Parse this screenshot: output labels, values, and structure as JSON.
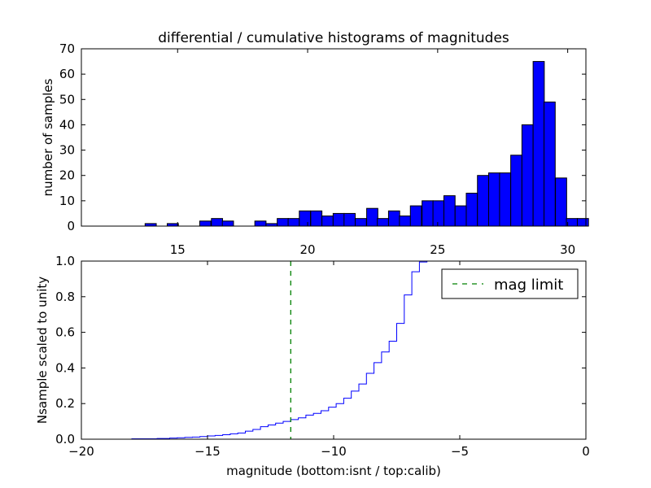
{
  "chart_data": [
    {
      "type": "bar",
      "title": "differential / cumulative histograms of magnitudes",
      "ylabel": "number of samples",
      "xlabel": "",
      "xlim": [
        11.3,
        30.7
      ],
      "ylim": [
        0,
        70
      ],
      "bin_width": 0.43,
      "bar_color": "#0000ff",
      "x_ticks": [
        15,
        20,
        25,
        30
      ],
      "x_tick_labels": [
        "15",
        "20",
        "25",
        "30"
      ],
      "y_ticks": [
        0,
        10,
        20,
        30,
        40,
        50,
        60,
        70
      ],
      "y_tick_labels": [
        "0",
        "10",
        "20",
        "30",
        "40",
        "50",
        "60",
        "70"
      ],
      "x_ticks_position": "top",
      "x_tick_labels_position": "bottom",
      "bins": [
        {
          "left": 13.75,
          "value": 1
        },
        {
          "left": 14.6,
          "value": 1
        },
        {
          "left": 15.85,
          "value": 2
        },
        {
          "left": 16.3,
          "value": 3
        },
        {
          "left": 16.72,
          "value": 2
        },
        {
          "left": 17.97,
          "value": 2
        },
        {
          "left": 18.4,
          "value": 1
        },
        {
          "left": 18.83,
          "value": 3
        },
        {
          "left": 19.25,
          "value": 3
        },
        {
          "left": 19.68,
          "value": 6
        },
        {
          "left": 20.12,
          "value": 6
        },
        {
          "left": 20.55,
          "value": 4
        },
        {
          "left": 20.98,
          "value": 5
        },
        {
          "left": 21.4,
          "value": 5
        },
        {
          "left": 21.83,
          "value": 3
        },
        {
          "left": 22.27,
          "value": 7
        },
        {
          "left": 22.68,
          "value": 3
        },
        {
          "left": 23.11,
          "value": 6
        },
        {
          "left": 23.53,
          "value": 4
        },
        {
          "left": 23.95,
          "value": 8
        },
        {
          "left": 24.4,
          "value": 10
        },
        {
          "left": 24.82,
          "value": 10
        },
        {
          "left": 25.24,
          "value": 12
        },
        {
          "left": 25.67,
          "value": 8
        },
        {
          "left": 26.1,
          "value": 13
        },
        {
          "left": 26.53,
          "value": 20
        },
        {
          "left": 26.96,
          "value": 21
        },
        {
          "left": 27.38,
          "value": 21
        },
        {
          "left": 27.81,
          "value": 28
        },
        {
          "left": 28.24,
          "value": 40
        },
        {
          "left": 28.67,
          "value": 65
        },
        {
          "left": 29.09,
          "value": 49
        },
        {
          "left": 29.53,
          "value": 19
        },
        {
          "left": 29.95,
          "value": 3
        },
        {
          "left": 30.37,
          "value": 3
        }
      ]
    },
    {
      "type": "line",
      "style": "step",
      "title": "",
      "xlabel": "magnitude (bottom:isnt / top:calib)",
      "ylabel": "Nsample scaled to unity",
      "xlim": [
        -20,
        0
      ],
      "ylim": [
        0,
        1
      ],
      "x_ticks": [
        -20,
        -15,
        -10,
        -5,
        0
      ],
      "x_tick_labels": [
        "−20",
        "−15",
        "−10",
        "−5",
        "0"
      ],
      "y_ticks": [
        0,
        0.2,
        0.4,
        0.6,
        0.8,
        1.0
      ],
      "y_tick_labels": [
        "0.0",
        "0.2",
        "0.4",
        "0.6",
        "0.8",
        "1.0"
      ],
      "legend": {
        "placement": "top-right",
        "entries": [
          {
            "label": "mag limit",
            "color": "#008000",
            "style": "dashed"
          }
        ]
      },
      "series": [
        {
          "color": "#0000ff",
          "x": [
            -20,
            -18,
            -17,
            -16.5,
            -16.2,
            -15.9,
            -15.6,
            -15.3,
            -15.0,
            -14.7,
            -14.4,
            -14.1,
            -13.8,
            -13.5,
            -13.2,
            -12.9,
            -12.6,
            -12.3,
            -12.0,
            -11.7,
            -11.4,
            -11.1,
            -10.8,
            -10.5,
            -10.2,
            -9.9,
            -9.6,
            -9.3,
            -9.0,
            -8.7,
            -8.4,
            -8.1,
            -7.8,
            -7.5,
            -7.2,
            -6.9,
            -6.6,
            -6.3,
            0
          ],
          "y": [
            0,
            0.002,
            0.004,
            0.006,
            0.008,
            0.01,
            0.012,
            0.015,
            0.018,
            0.021,
            0.025,
            0.03,
            0.035,
            0.045,
            0.055,
            0.07,
            0.08,
            0.09,
            0.1,
            0.11,
            0.12,
            0.135,
            0.145,
            0.16,
            0.18,
            0.2,
            0.23,
            0.27,
            0.31,
            0.37,
            0.43,
            0.49,
            0.55,
            0.65,
            0.81,
            0.94,
            0.995,
            1.0,
            1.0
          ]
        }
      ],
      "vline": {
        "name": "mag limit",
        "x": -11.7,
        "color": "#008000",
        "style": "dashed"
      }
    }
  ]
}
